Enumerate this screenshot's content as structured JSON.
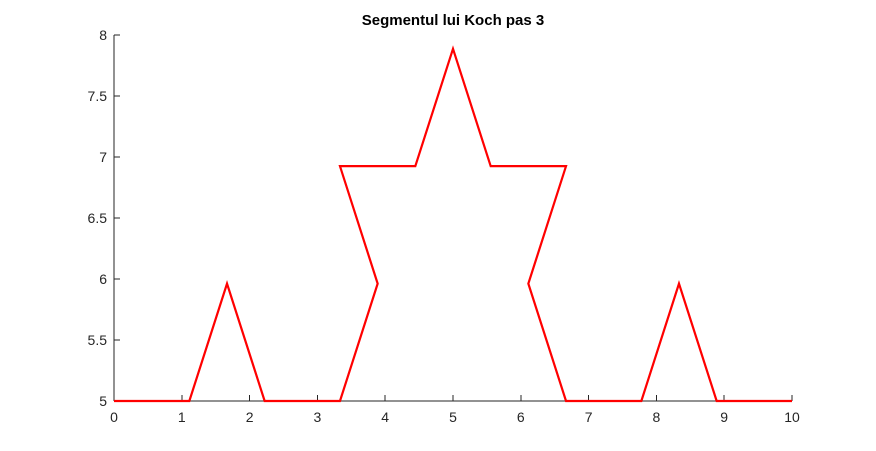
{
  "chart_data": {
    "type": "line",
    "title": "Segmentul lui Koch pas 3",
    "xlabel": "",
    "ylabel": "",
    "xlim": [
      0,
      10
    ],
    "ylim": [
      5,
      8
    ],
    "xticks": [
      0,
      1,
      2,
      3,
      4,
      5,
      6,
      7,
      8,
      9,
      10
    ],
    "yticks": [
      5,
      5.5,
      6,
      6.5,
      7,
      7.5,
      8
    ],
    "ytick_labels": [
      "5",
      "5.5",
      "6",
      "6.5",
      "7",
      "7.5",
      "8"
    ],
    "grid": false,
    "legend": "none",
    "series": [
      {
        "color": "#ff0000",
        "x": [
          0,
          1.111,
          1.667,
          2.222,
          3.333,
          3.889,
          3.333,
          4.444,
          5,
          5.556,
          6.667,
          6.111,
          6.667,
          7.778,
          8.333,
          8.889,
          10
        ],
        "y": [
          5,
          5,
          5.962,
          5,
          5,
          5.962,
          6.925,
          6.925,
          7.887,
          6.925,
          6.925,
          5.962,
          5,
          5,
          5.962,
          5,
          5
        ]
      }
    ]
  }
}
